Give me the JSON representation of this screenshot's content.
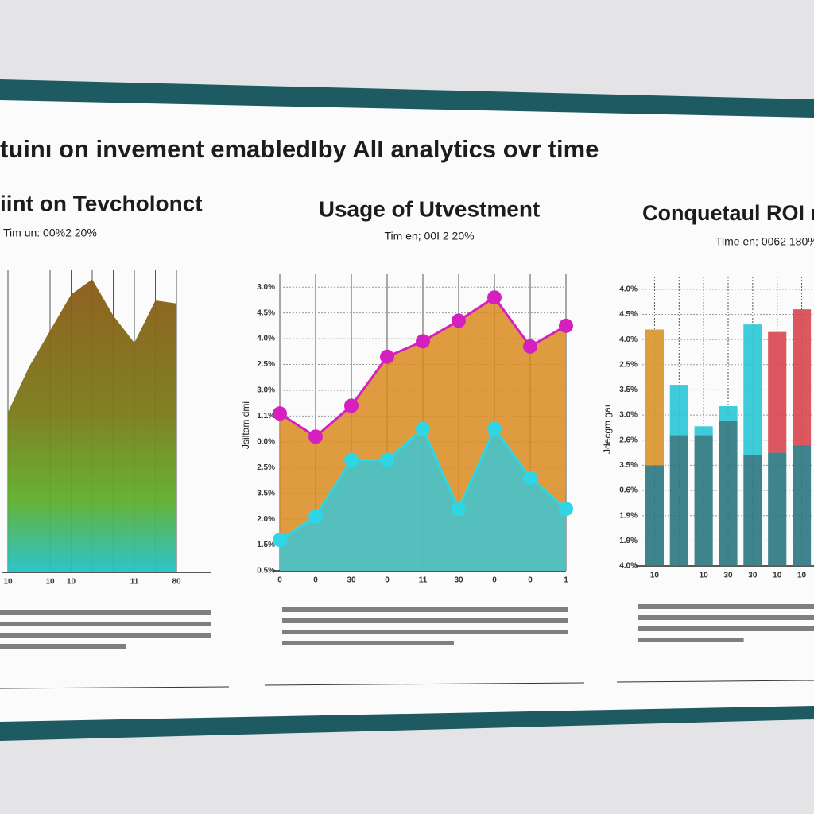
{
  "title": "tuinı on invement emabledIby AlI analytics ovr time",
  "chart_data": [
    {
      "type": "area",
      "title": "iint on Tevcholonct",
      "subtitle": "Tim un: 00%2 20%",
      "categories": [
        "10",
        null,
        "10",
        "10",
        null,
        null,
        "11",
        null,
        "80"
      ],
      "values": [
        53,
        68,
        80,
        92,
        97,
        85,
        76,
        90,
        89
      ],
      "ylim": [
        0,
        100
      ],
      "grid": true
    },
    {
      "type": "line",
      "title": "Usage of  Utvestment",
      "subtitle": "Tim en; 00I 2 20%",
      "y_label": "Jsiltam dmi",
      "categories": [
        "0",
        "0",
        "30",
        "0",
        "11",
        "30",
        "0",
        "0",
        "1"
      ],
      "series": [
        {
          "color": "#d61fbf",
          "fill": "#d98a1e",
          "values": [
            6.1,
            5.2,
            6.4,
            8.3,
            8.9,
            9.7,
            10.6,
            8.7,
            9.5
          ]
        },
        {
          "color": "#2fd6e6",
          "fill": "#3cc6d2",
          "values": [
            1.2,
            2.1,
            4.3,
            4.3,
            5.5,
            2.4,
            5.5,
            3.6,
            2.4
          ]
        }
      ],
      "ylim": [
        0,
        11.5
      ],
      "yticks": [
        {
          "value": 0,
          "label": "0.5%"
        },
        {
          "value": 1,
          "label": "1.5%"
        },
        {
          "value": 2,
          "label": "2.0%"
        },
        {
          "value": 3,
          "label": "3.5%"
        },
        {
          "value": 4,
          "label": "2.5%"
        },
        {
          "value": 5,
          "label": "0.0%"
        },
        {
          "value": 6,
          "label": "1.1%"
        },
        {
          "value": 7,
          "label": "3.0%"
        },
        {
          "value": 8,
          "label": "2.5%"
        },
        {
          "value": 9,
          "label": "4.0%"
        },
        {
          "value": 10,
          "label": "4.5%"
        },
        {
          "value": 11,
          "label": "3.0%"
        }
      ],
      "grid": true
    },
    {
      "type": "bar",
      "title": "Conquetaul ROI ri",
      "subtitle": "Time en; 0062 180%",
      "y_label": "Jdecgm gaı",
      "categories": [
        "10",
        null,
        "10",
        "30",
        "30",
        "10",
        "10"
      ],
      "series": [
        {
          "color": "#2f7a82",
          "values": [
            4.0,
            5.2,
            5.2,
            5.75,
            4.4,
            4.5,
            4.8
          ]
        },
        {
          "colors": [
            "#d9962e",
            "#2ec8d8",
            "#2ec8d8",
            "#2ec8d8",
            "#2ec8d8",
            "#d84a52",
            "#d84a52"
          ],
          "values": [
            5.4,
            2.0,
            0.35,
            0.6,
            5.2,
            4.8,
            5.4
          ]
        }
      ],
      "ylim": [
        0,
        11.5
      ],
      "yticks": [
        {
          "value": 0,
          "label": "4.0%"
        },
        {
          "value": 1,
          "label": "1.9%"
        },
        {
          "value": 2,
          "label": "1.9%"
        },
        {
          "value": 3,
          "label": "0.6%"
        },
        {
          "value": 4,
          "label": "3.5%"
        },
        {
          "value": 5,
          "label": "2.6%"
        },
        {
          "value": 6,
          "label": "3.0%"
        },
        {
          "value": 7,
          "label": "3.5%"
        },
        {
          "value": 8,
          "label": "2.5%"
        },
        {
          "value": 9,
          "label": "4.0%"
        },
        {
          "value": 10,
          "label": "4.5%"
        },
        {
          "value": 11,
          "label": "4.0%"
        }
      ],
      "grid": true
    }
  ]
}
